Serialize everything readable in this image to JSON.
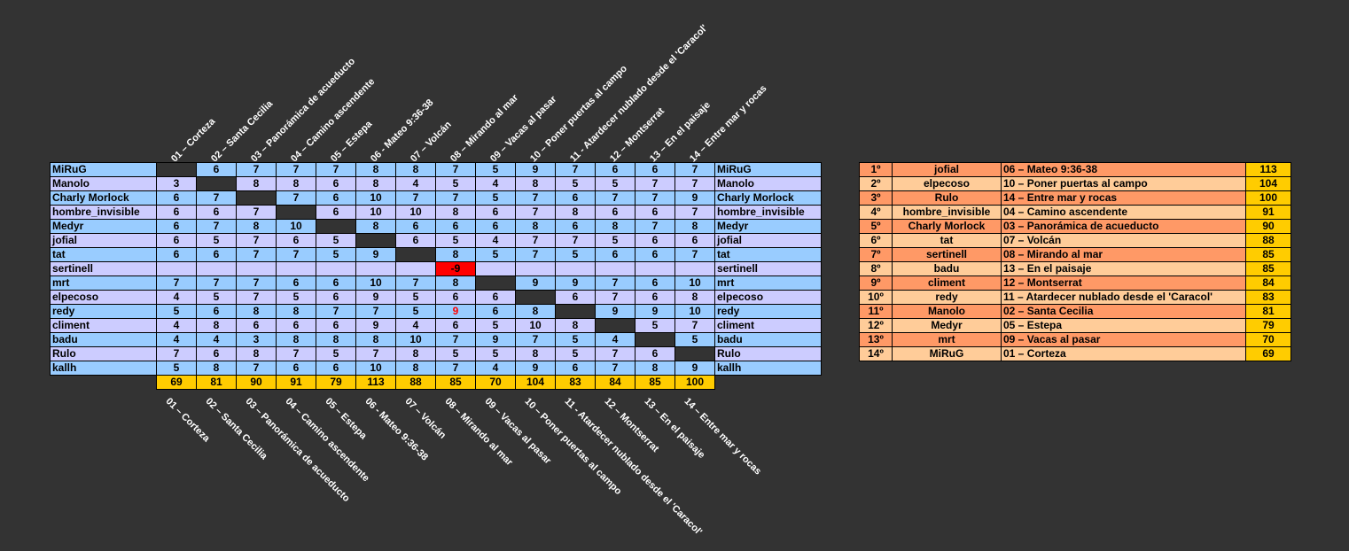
{
  "photos": [
    "01 – Corteza",
    "02 – Santa Cecilia",
    "03 – Panorámica de acueducto",
    "04 – Camino ascendente",
    "05 – Estepa",
    "06 - Mateo 9:36-38",
    "07 – Volcán",
    "08 – Mirando al mar",
    "09 – Vacas al pasar",
    "10 – Poner puertas al campo",
    "11 - Atardecer nublado desde el 'Caracol'",
    "12 – Montserrat",
    "13 – En el paisaje",
    "14 – Entre mar y rocas"
  ],
  "voters": [
    {
      "name": "MiRuG",
      "scores": [
        "",
        "6",
        "7",
        "7",
        "7",
        "8",
        "8",
        "7",
        "5",
        "9",
        "7",
        "6",
        "6",
        "7"
      ]
    },
    {
      "name": "Manolo",
      "scores": [
        "3",
        "",
        "8",
        "8",
        "6",
        "8",
        "4",
        "5",
        "4",
        "8",
        "5",
        "5",
        "7",
        "7"
      ]
    },
    {
      "name": "Charly Morlock",
      "scores": [
        "6",
        "7",
        "",
        "7",
        "6",
        "10",
        "7",
        "7",
        "5",
        "7",
        "6",
        "7",
        "7",
        "9"
      ]
    },
    {
      "name": "hombre_invisible",
      "scores": [
        "6",
        "6",
        "7",
        "",
        "6",
        "10",
        "10",
        "8",
        "6",
        "7",
        "8",
        "6",
        "6",
        "7"
      ]
    },
    {
      "name": "Medyr",
      "scores": [
        "6",
        "7",
        "8",
        "10",
        "",
        "8",
        "6",
        "6",
        "6",
        "8",
        "6",
        "8",
        "7",
        "8"
      ]
    },
    {
      "name": "jofial",
      "scores": [
        "6",
        "5",
        "7",
        "6",
        "5",
        "",
        "6",
        "5",
        "4",
        "7",
        "7",
        "5",
        "6",
        "6"
      ]
    },
    {
      "name": "tat",
      "scores": [
        "6",
        "6",
        "7",
        "7",
        "5",
        "9",
        "",
        "8",
        "5",
        "7",
        "5",
        "6",
        "6",
        "7"
      ]
    },
    {
      "name": "sertinell",
      "scores": [
        "",
        "",
        "",
        "",
        "",
        "",
        "",
        "-9",
        "",
        "",
        "",
        "",
        "",
        ""
      ]
    },
    {
      "name": "mrt",
      "scores": [
        "7",
        "7",
        "7",
        "6",
        "6",
        "10",
        "7",
        "8",
        "",
        "9",
        "9",
        "7",
        "6",
        "10"
      ]
    },
    {
      "name": "elpecoso",
      "scores": [
        "4",
        "5",
        "7",
        "5",
        "6",
        "9",
        "5",
        "6",
        "6",
        "",
        "6",
        "7",
        "6",
        "8"
      ]
    },
    {
      "name": "redy",
      "scores": [
        "5",
        "6",
        "8",
        "8",
        "7",
        "7",
        "5",
        "9",
        "6",
        "8",
        "",
        "9",
        "9",
        "10"
      ]
    },
    {
      "name": "climent",
      "scores": [
        "4",
        "8",
        "6",
        "6",
        "6",
        "9",
        "4",
        "6",
        "5",
        "10",
        "8",
        "",
        "5",
        "7"
      ]
    },
    {
      "name": "badu",
      "scores": [
        "4",
        "4",
        "3",
        "8",
        "8",
        "8",
        "10",
        "7",
        "9",
        "7",
        "5",
        "4",
        "",
        "5"
      ]
    },
    {
      "name": "Rulo",
      "scores": [
        "7",
        "6",
        "8",
        "7",
        "5",
        "7",
        "8",
        "5",
        "5",
        "8",
        "5",
        "7",
        "6",
        ""
      ]
    },
    {
      "name": "kallh",
      "scores": [
        "5",
        "8",
        "7",
        "6",
        "6",
        "10",
        "8",
        "7",
        "4",
        "9",
        "6",
        "7",
        "8",
        "9"
      ]
    }
  ],
  "totals": [
    "69",
    "81",
    "90",
    "91",
    "79",
    "113",
    "88",
    "85",
    "70",
    "104",
    "83",
    "84",
    "85",
    "100"
  ],
  "ranking": [
    {
      "pos": "1º",
      "user": "jofial",
      "photo": "06 – Mateo 9:36-38",
      "points": "113"
    },
    {
      "pos": "2º",
      "user": "elpecoso",
      "photo": "10 – Poner puertas al campo",
      "points": "104"
    },
    {
      "pos": "3º",
      "user": "Rulo",
      "photo": "14 – Entre mar y rocas",
      "points": "100"
    },
    {
      "pos": "4º",
      "user": "hombre_invisible",
      "photo": "04 – Camino ascendente",
      "points": "91"
    },
    {
      "pos": "5º",
      "user": "Charly Morlock",
      "photo": "03 – Panorámica de acueducto",
      "points": "90"
    },
    {
      "pos": "6º",
      "user": "tat",
      "photo": "07 – Volcán",
      "points": "88"
    },
    {
      "pos": "7º",
      "user": "sertinell",
      "photo": "08 – Mirando al mar",
      "points": "85"
    },
    {
      "pos": "8º",
      "user": "badu",
      "photo": "13 – En el paisaje",
      "points": "85"
    },
    {
      "pos": "9º",
      "user": "climent",
      "photo": "12 – Montserrat",
      "points": "84"
    },
    {
      "pos": "10º",
      "user": "redy",
      "photo": "11 – Atardecer nublado desde el 'Caracol'",
      "points": "83"
    },
    {
      "pos": "11º",
      "user": "Manolo",
      "photo": "02 – Santa Cecilia",
      "points": "81"
    },
    {
      "pos": "12º",
      "user": "Medyr",
      "photo": "05 – Estepa",
      "points": "79"
    },
    {
      "pos": "13º",
      "user": "mrt",
      "photo": "09 – Vacas al pasar",
      "points": "70"
    },
    {
      "pos": "14º",
      "user": "MiRuG",
      "photo": "01 – Corteza",
      "points": "69"
    }
  ],
  "colors": {
    "background": "#333333",
    "row_blue": "#99ccff",
    "row_lavender": "#ccccff",
    "totals": "#ffcc00",
    "rank_dark": "#ff9966",
    "rank_light": "#ffcc99",
    "negative_cell": "#ff0000"
  }
}
